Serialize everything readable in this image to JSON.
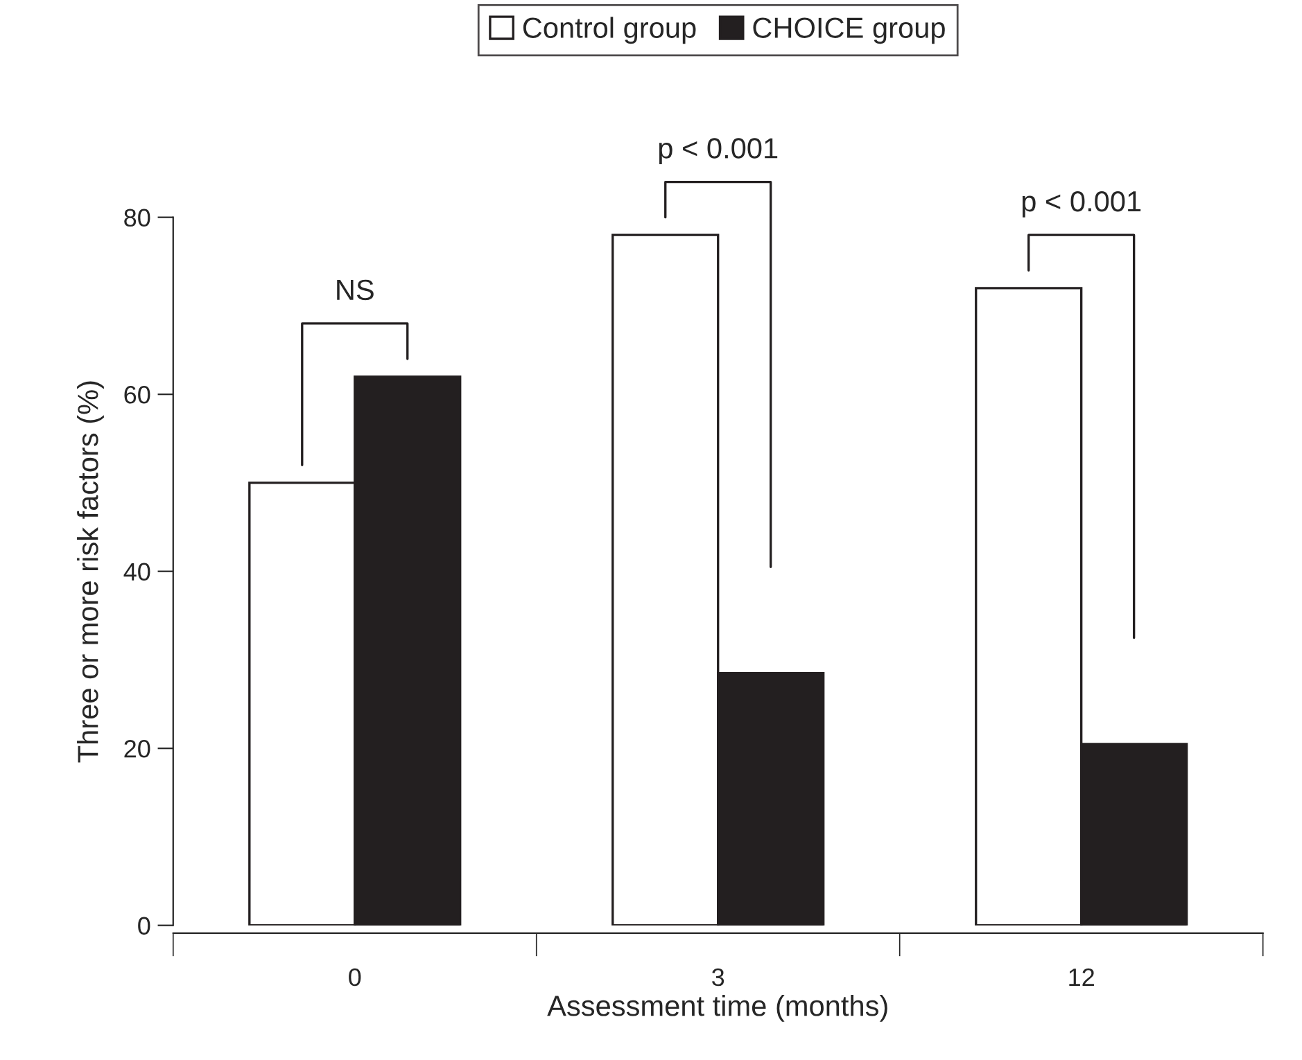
{
  "chart_data": {
    "type": "bar",
    "categories": [
      "0",
      "3",
      "12"
    ],
    "series": [
      {
        "name": "Control group",
        "color": "#ffffff",
        "values": [
          50,
          78,
          72
        ]
      },
      {
        "name": "CHOICE group",
        "color": "#231f20",
        "values": [
          62,
          28.5,
          20.5
        ]
      }
    ],
    "xlabel": "Assessment time (months)",
    "ylabel": "Three or more risk factors (%)",
    "ylim": [
      0,
      80
    ],
    "yticks": [
      0,
      20,
      40,
      60,
      80
    ],
    "annotations": [
      "NS",
      "p < 0.001",
      "p < 0.001"
    ],
    "legend": "top",
    "grid": false
  }
}
